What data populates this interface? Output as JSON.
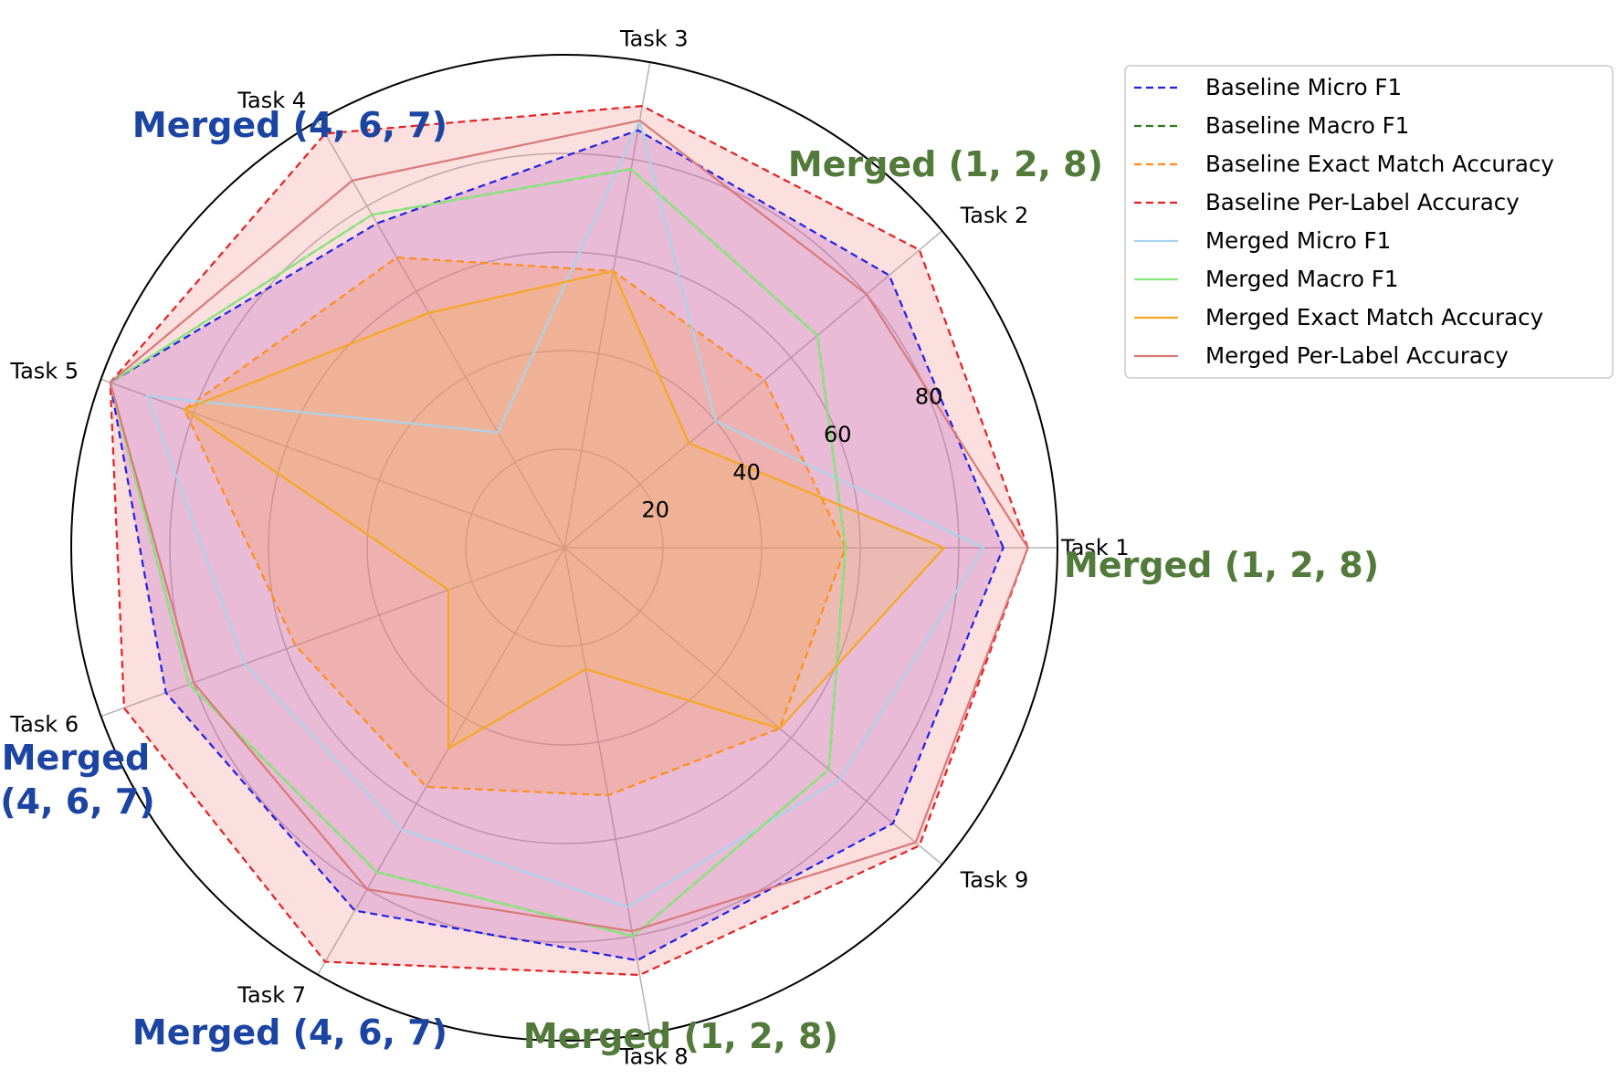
{
  "chart_data": {
    "type": "radar",
    "categories": [
      "Task 1",
      "Task 2",
      "Task 3",
      "Task 4",
      "Task 5",
      "Task 6",
      "Task 7",
      "Task 8",
      "Task 9"
    ],
    "rticks": [
      20,
      40,
      60,
      80
    ],
    "rlim": [
      0,
      100
    ],
    "legend_position": "upper right, outside plot",
    "series": [
      {
        "name": "Baseline Micro F1",
        "style": "dashed",
        "color": "#1f1fe6",
        "fill": "#9b3fd0",
        "values": [
          89,
          86,
          86,
          76,
          98,
          86,
          85,
          85,
          87
        ]
      },
      {
        "name": "Baseline Macro F1",
        "style": "dashed",
        "color": "#2a7a1a",
        "fill": null,
        "values": [
          57,
          67,
          78,
          78,
          98,
          81,
          76,
          80,
          70
        ]
      },
      {
        "name": "Baseline Exact Match Accuracy",
        "style": "dashed",
        "color": "#ff8c1a",
        "fill": "#ff9a2a",
        "values": [
          57,
          53,
          57,
          68,
          82,
          58,
          56,
          51,
          57
        ]
      },
      {
        "name": "Baseline Per-Label Accuracy",
        "style": "dashed",
        "color": "#e52020",
        "fill": "#f28080",
        "values": [
          94,
          94,
          91,
          97,
          98,
          95,
          97,
          88,
          94
        ]
      },
      {
        "name": "Merged Micro F1",
        "style": "solid",
        "color": "#a8d4ec",
        "fill": null,
        "values": [
          85,
          40,
          88,
          27,
          90,
          69,
          66,
          74,
          73
        ]
      },
      {
        "name": "Merged Macro F1",
        "style": "solid",
        "color": "#86e87a",
        "fill": null,
        "values": [
          57,
          67,
          78,
          78,
          98,
          81,
          76,
          80,
          70
        ]
      },
      {
        "name": "Merged Exact Match Accuracy",
        "style": "solid",
        "color": "#f5a623",
        "fill": "#f7b84a",
        "values": [
          77,
          33,
          57,
          55,
          82,
          25,
          47,
          25,
          57
        ]
      },
      {
        "name": "Merged Per-Label Accuracy",
        "style": "solid",
        "color": "#d97a7a",
        "fill": null,
        "values": [
          94,
          80,
          88,
          86,
          98,
          80,
          80,
          79,
          93
        ]
      }
    ],
    "annotations": [
      {
        "text": "Merged (1, 2, 8)",
        "color": "#527a3a"
      },
      {
        "text": "Merged (1, 2, 8)",
        "color": "#527a3a"
      },
      {
        "text": "Merged (1, 2, 8)",
        "color": "#527a3a"
      },
      {
        "text": "Merged (4, 6, 7)",
        "color": "#1c45a3"
      },
      {
        "text": "Merged",
        "color": "#1c45a3"
      },
      {
        "text": "(4, 6, 7)",
        "color": "#1c45a3"
      },
      {
        "text": "Merged (4, 6, 7)",
        "color": "#1c45a3"
      }
    ]
  }
}
